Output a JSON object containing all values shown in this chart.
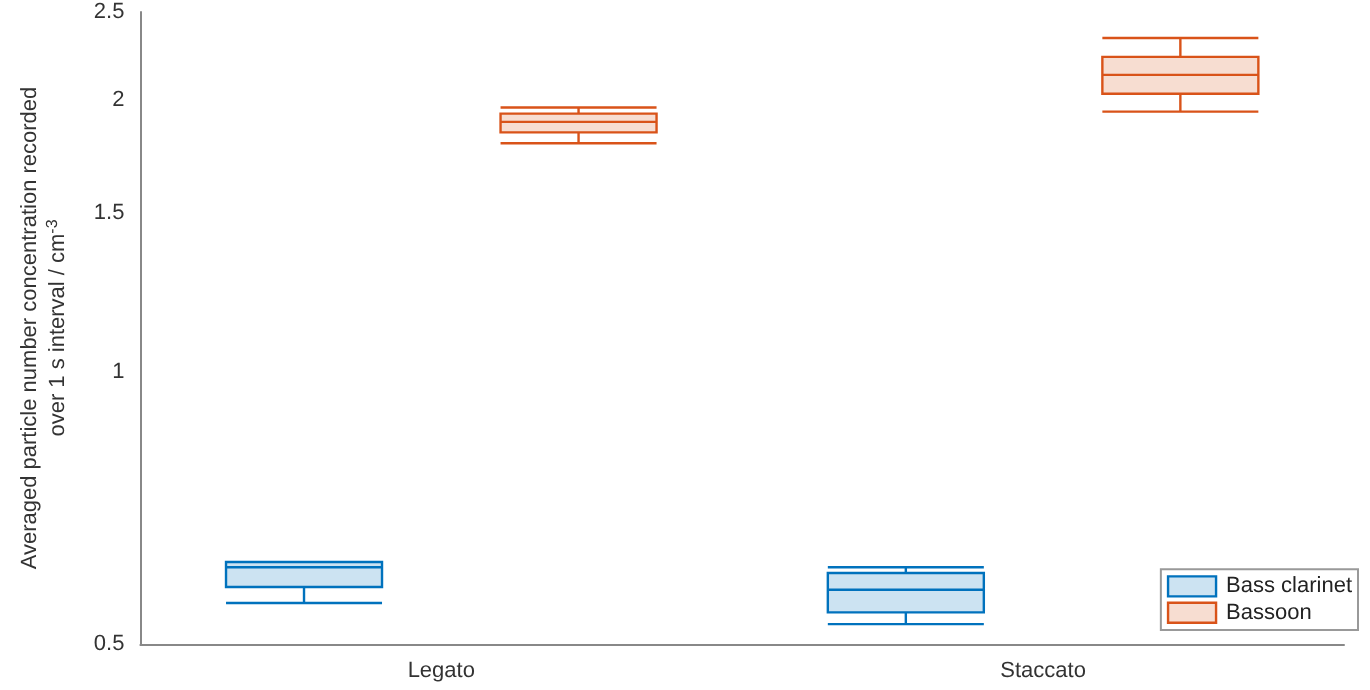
{
  "chart_data": {
    "type": "box",
    "ylabel": "Averaged particle number concentration recorded\nover 1 s interval / cm$^{-3}$",
    "categories": [
      "Legato",
      "Staccato"
    ],
    "log": true,
    "ylim": [
      0.5,
      2.5
    ],
    "yticks": [
      0.5,
      1,
      1.5,
      2,
      2.5
    ],
    "grid": false,
    "legend": "bottom right",
    "series": [
      {
        "name": "Bass clarinet",
        "color": "#0072bd",
        "boxes": [
          {
            "low": 0.555,
            "q1": 0.578,
            "median": 0.608,
            "q3": 0.616,
            "high": 0.616
          },
          {
            "low": 0.526,
            "q1": 0.542,
            "median": 0.574,
            "q3": 0.599,
            "high": 0.608
          }
        ]
      },
      {
        "name": "Bassoon",
        "color": "#d95319",
        "boxes": [
          {
            "low": 1.79,
            "q1": 1.84,
            "median": 1.89,
            "q3": 1.93,
            "high": 1.96
          },
          {
            "low": 1.94,
            "q1": 2.03,
            "median": 2.13,
            "q3": 2.23,
            "high": 2.34
          }
        ]
      }
    ]
  }
}
